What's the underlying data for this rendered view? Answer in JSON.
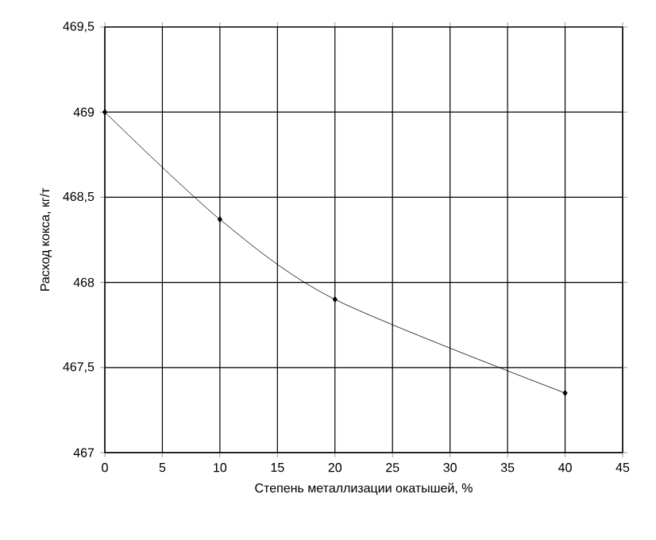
{
  "chart_data": {
    "type": "line",
    "xlabel": "Степень металлизации окатышей, %",
    "ylabel": "Расход кокса, кг/т",
    "x": [
      0,
      10,
      20,
      40
    ],
    "series": [
      {
        "color": "#000000",
        "values": [
          469,
          468.37,
          467.9,
          467.35
        ]
      }
    ],
    "xlim": [
      0,
      45
    ],
    "xticks": [
      0,
      5,
      10,
      15,
      20,
      25,
      30,
      35,
      40,
      45
    ],
    "ylim": [
      467,
      469.5
    ],
    "yticks": [
      467,
      {
        "value": 467.5,
        "label": "467,5"
      },
      468,
      {
        "value": 468.5,
        "label": "468,5"
      },
      469,
      {
        "value": 469.5,
        "label": "469,5"
      }
    ],
    "grid": true,
    "marker": "diamond",
    "line_style": "solid"
  }
}
